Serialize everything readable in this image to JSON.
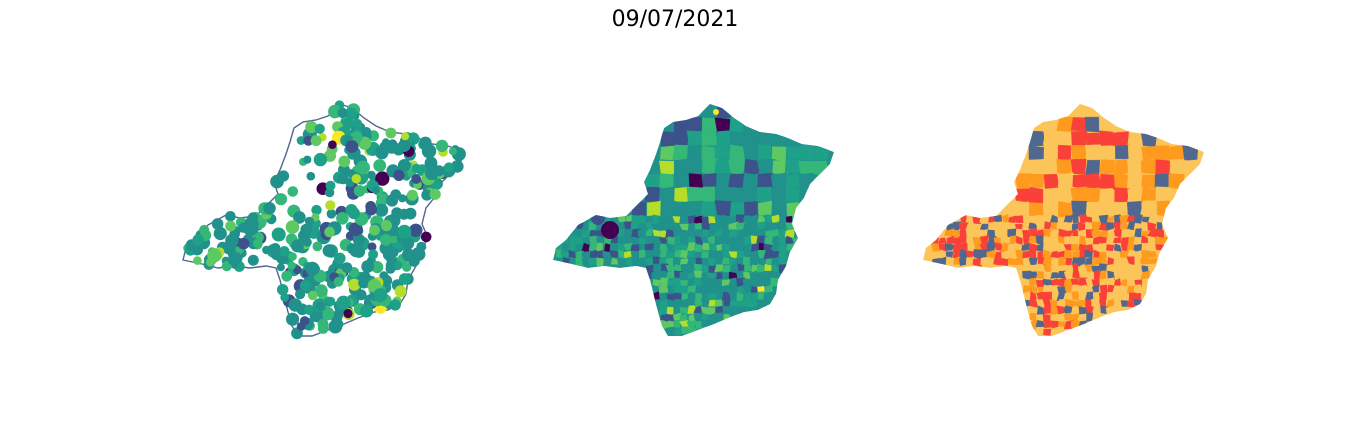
{
  "figure": {
    "title": "09/07/2021"
  },
  "palette": {
    "viridis": [
      "#440154",
      "#3b528b",
      "#21918c",
      "#1fa088",
      "#35b779",
      "#5ec962",
      "#b5de2b",
      "#fde725"
    ],
    "classes": [
      "#fcc55a",
      "#fe9b1f",
      "#f9413a",
      "#50688f"
    ],
    "outline": "#50688f"
  },
  "maps": [
    {
      "name": "points-map",
      "kind": "proportional-points"
    },
    {
      "name": "choropleth-viridis",
      "kind": "choropleth-continuous"
    },
    {
      "name": "choropleth-classes",
      "kind": "choropleth-categorical"
    }
  ]
}
